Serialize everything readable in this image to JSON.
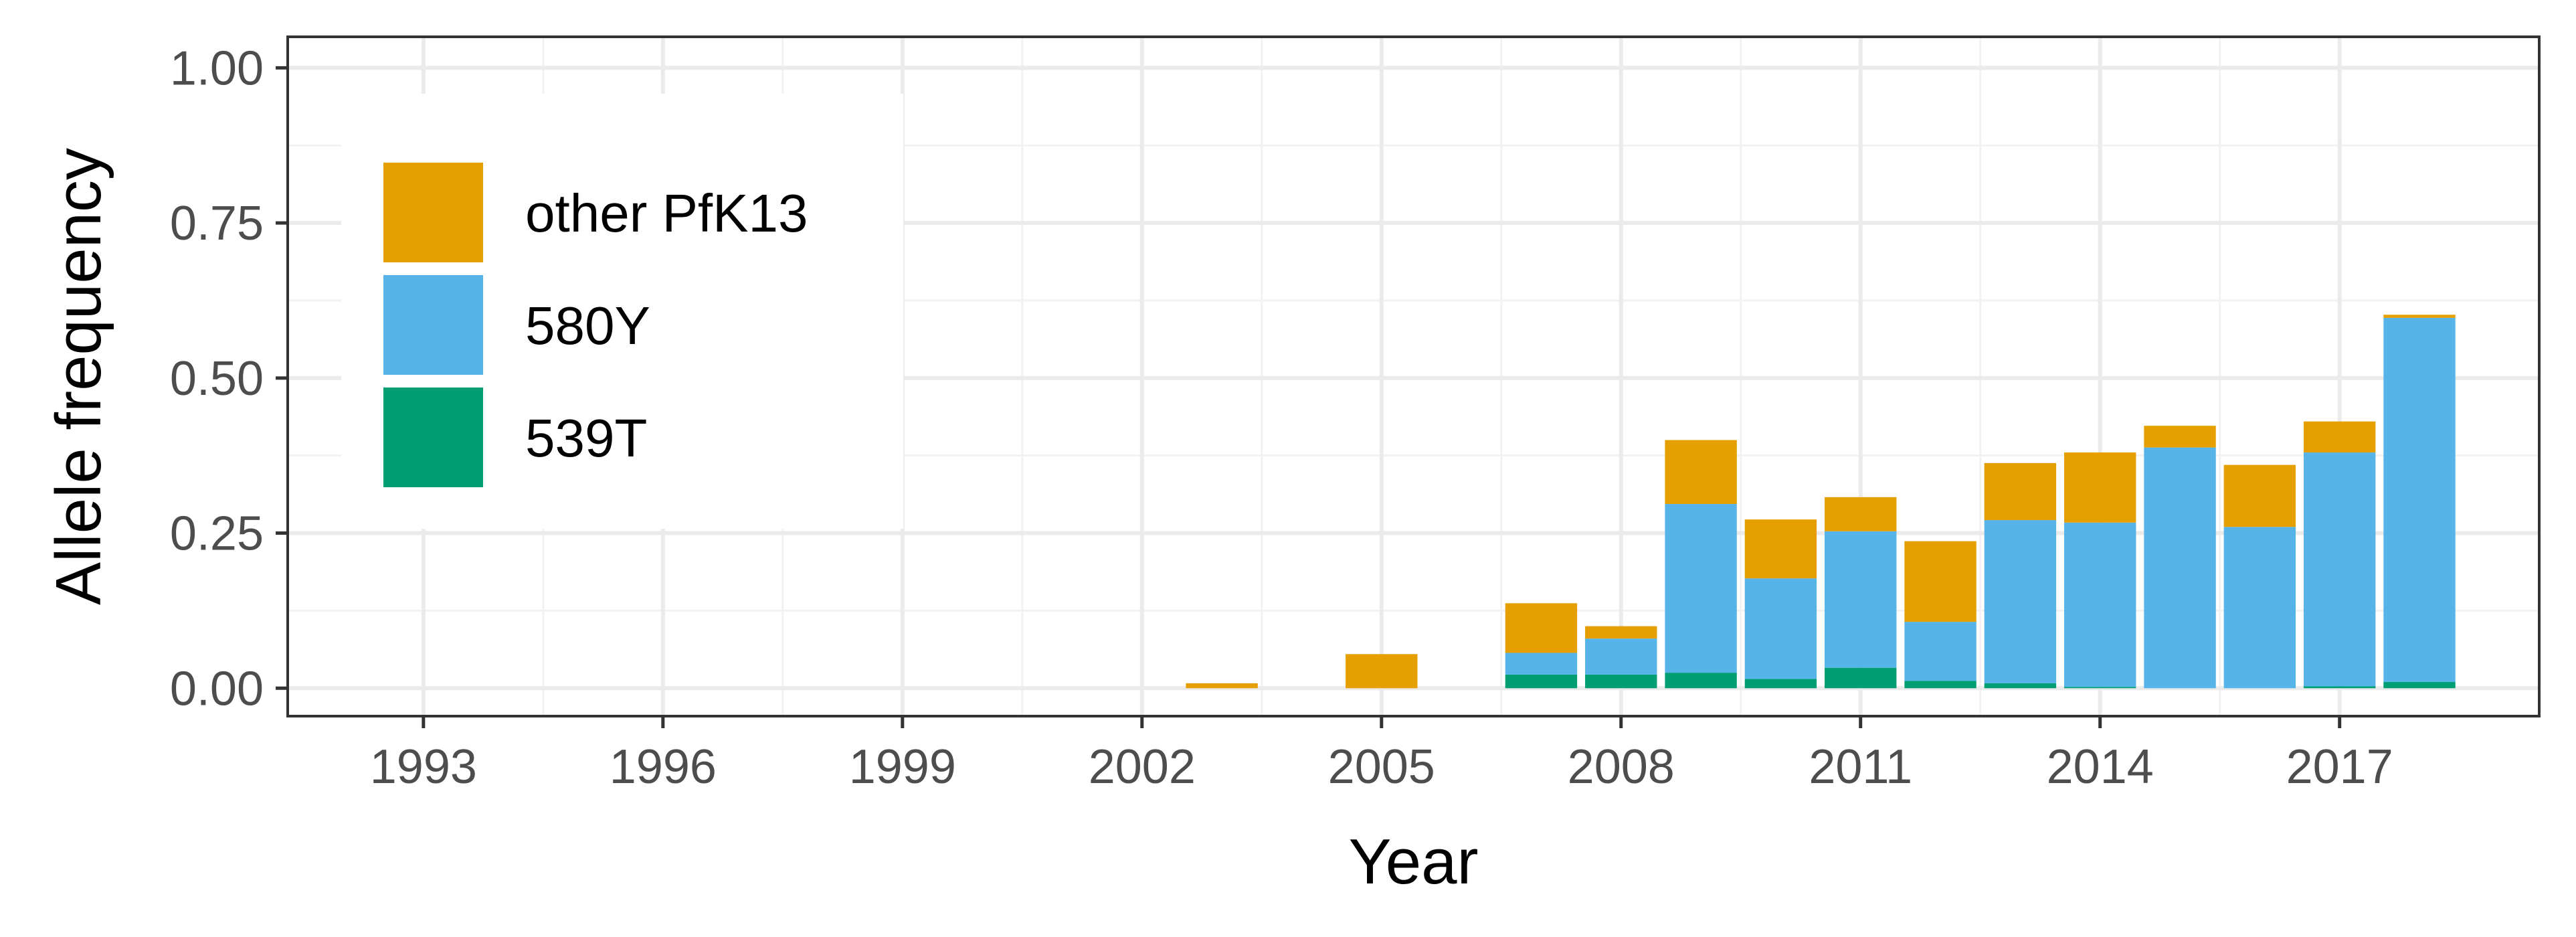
{
  "chart_data": {
    "type": "bar",
    "stacked": true,
    "xlabel": "Year",
    "ylabel": "Allele frequency",
    "x_tick_labels": [
      "1993",
      "1996",
      "1999",
      "2002",
      "2005",
      "2008",
      "2011",
      "2014",
      "2017"
    ],
    "y_tick_labels": [
      "0.00",
      "0.25",
      "0.50",
      "0.75",
      "1.00"
    ],
    "y_ticks": [
      0,
      0.25,
      0.5,
      0.75,
      1.0
    ],
    "x_ticks": [
      1993,
      1996,
      1999,
      2002,
      2005,
      2008,
      2011,
      2014,
      2017
    ],
    "xlim": [
      1991.3,
      2019.5
    ],
    "ylim": [
      -0.045,
      1.05
    ],
    "grid": true,
    "legend_position": "top-left",
    "categories": [
      2003,
      2005,
      2007,
      2008,
      2009,
      2010,
      2011,
      2012,
      2013,
      2014,
      2015,
      2016,
      2017,
      2018
    ],
    "series": [
      {
        "name": "539T",
        "color": "#009E73",
        "values": [
          0,
          0,
          0.022,
          0.022,
          0.025,
          0.015,
          0.033,
          0.012,
          0.008,
          0.002,
          0,
          0,
          0.003,
          0.01
        ]
      },
      {
        "name": "580Y",
        "color": "#56B4E9",
        "values": [
          0,
          0,
          0.035,
          0.058,
          0.272,
          0.162,
          0.22,
          0.095,
          0.263,
          0.265,
          0.388,
          0.26,
          0.377,
          0.587
        ]
      },
      {
        "name": "other PfK13",
        "color": "#E69F00",
        "values": [
          0.008,
          0.055,
          0.08,
          0.02,
          0.103,
          0.095,
          0.055,
          0.13,
          0.092,
          0.113,
          0.035,
          0.1,
          0.05,
          0.005
        ]
      }
    ],
    "legend_order": [
      "other PfK13",
      "580Y",
      "539T"
    ]
  }
}
